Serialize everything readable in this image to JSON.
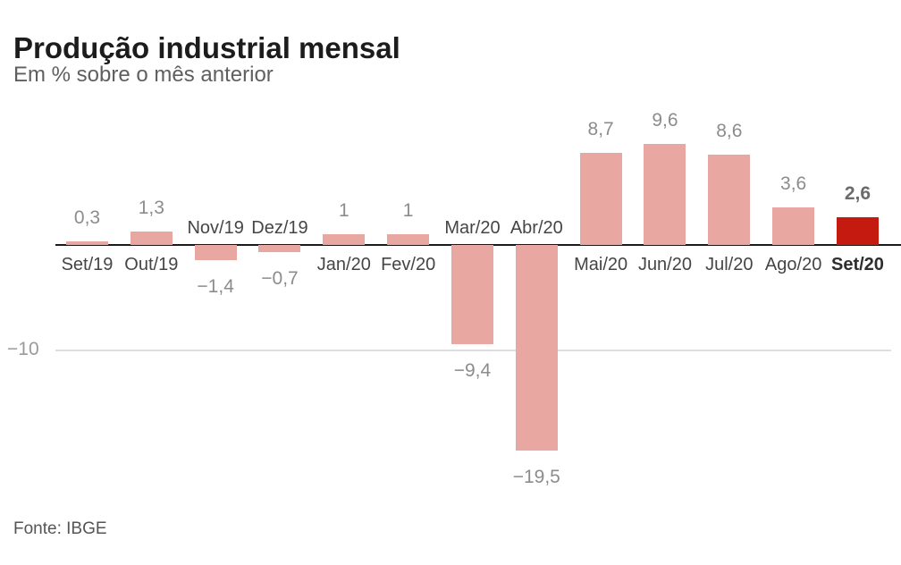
{
  "header": {
    "title": "Produção industrial mensal",
    "subtitle": "Em % sobre o mês anterior"
  },
  "footer": {
    "source": "Fonte: IBGE"
  },
  "chart_data": {
    "type": "bar",
    "title": "Produção industrial mensal",
    "subtitle": "Em % sobre o mês anterior",
    "categories": [
      "Set/19",
      "Out/19",
      "Nov/19",
      "Dez/19",
      "Jan/20",
      "Fev/20",
      "Mar/20",
      "Abr/20",
      "Mai/20",
      "Jun/20",
      "Jul/20",
      "Ago/20",
      "Set/20"
    ],
    "values": [
      0.3,
      1.3,
      -1.4,
      -0.7,
      1,
      1,
      -9.4,
      -19.5,
      8.7,
      9.6,
      8.6,
      3.6,
      2.6
    ],
    "value_labels": [
      "0,3",
      "1,3",
      "−1,4",
      "−0,7",
      "1",
      "1",
      "−9,4",
      "−19,5",
      "8,7",
      "9,6",
      "8,6",
      "3,6",
      "2,6"
    ],
    "highlight_index": 12,
    "highlight_category": "Set/20",
    "highlight_value": 2.6,
    "colors": {
      "bar": "#e9a7a2",
      "highlight_bar": "#c41a0f",
      "axis_line": "#1a1a1a",
      "gridline": "#dedede"
    },
    "axis": {
      "gridline_value": -10,
      "gridline_label": "−10"
    },
    "ylim": [
      -21,
      11
    ],
    "xlabel": "",
    "ylabel": "",
    "legend": null,
    "source": "Fonte: IBGE"
  }
}
